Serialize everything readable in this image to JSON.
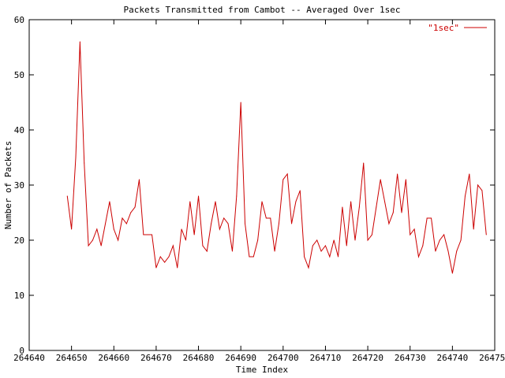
{
  "chart_data": {
    "type": "line",
    "title": "Packets Transmitted from Cambot -- Averaged Over 1sec",
    "xlabel": "Time Index",
    "ylabel": "Number of Packets",
    "xlim": [
      264640,
      264750
    ],
    "ylim": [
      0,
      60
    ],
    "xticks": [
      264640,
      264650,
      264660,
      264670,
      264680,
      264690,
      264700,
      264710,
      264720,
      264730,
      264740,
      264750
    ],
    "yticks": [
      0,
      10,
      20,
      30,
      40,
      50,
      60
    ],
    "xtick_labels": [
      "264640",
      "264650",
      "264660",
      "264670",
      "264680",
      "264690",
      "264700",
      "264710",
      "264720",
      "264730",
      "264740",
      "264750"
    ],
    "ytick_labels": [
      "0",
      "10",
      "20",
      "30",
      "40",
      "50",
      "60"
    ],
    "grid": false,
    "legend_position": "top-right",
    "series": [
      {
        "name": "\"1sec\"",
        "color": "#cc0000",
        "x": [
          264649,
          264650,
          264651,
          264652,
          264653,
          264654,
          264655,
          264656,
          264657,
          264658,
          264659,
          264660,
          264661,
          264662,
          264663,
          264664,
          264665,
          264666,
          264667,
          264668,
          264669,
          264670,
          264671,
          264672,
          264673,
          264674,
          264675,
          264676,
          264677,
          264678,
          264679,
          264680,
          264681,
          264682,
          264683,
          264684,
          264685,
          264686,
          264687,
          264688,
          264689,
          264690,
          264691,
          264692,
          264693,
          264694,
          264695,
          264696,
          264697,
          264698,
          264699,
          264700,
          264701,
          264702,
          264703,
          264704,
          264705,
          264706,
          264707,
          264708,
          264709,
          264710,
          264711,
          264712,
          264713,
          264714,
          264715,
          264716,
          264717,
          264718,
          264719,
          264720,
          264721,
          264722,
          264723,
          264724,
          264725,
          264726,
          264727,
          264728,
          264729,
          264730,
          264731,
          264732,
          264733,
          264734,
          264735,
          264736,
          264737,
          264738,
          264739,
          264740,
          264741,
          264742,
          264743,
          264744,
          264745,
          264746,
          264747,
          264748
        ],
        "y": [
          28,
          22,
          35,
          56,
          34,
          19,
          20,
          22,
          19,
          23,
          27,
          22,
          20,
          24,
          23,
          25,
          26,
          31,
          21,
          21,
          21,
          15,
          17,
          16,
          17,
          19,
          15,
          22,
          20,
          27,
          21,
          28,
          19,
          18,
          23,
          27,
          22,
          24,
          23,
          18,
          28,
          45,
          23,
          17,
          17,
          20,
          27,
          24,
          24,
          18,
          23,
          31,
          32,
          23,
          27,
          29,
          17,
          15,
          19,
          20,
          18,
          19,
          17,
          20,
          17,
          26,
          19,
          27,
          20,
          26,
          34,
          20,
          21,
          26,
          31,
          27,
          23,
          25,
          32,
          25,
          31,
          21,
          22,
          17,
          19,
          24,
          24,
          18,
          20,
          21,
          18,
          14,
          18,
          20,
          28,
          32,
          22,
          30,
          29,
          21
        ]
      }
    ]
  }
}
